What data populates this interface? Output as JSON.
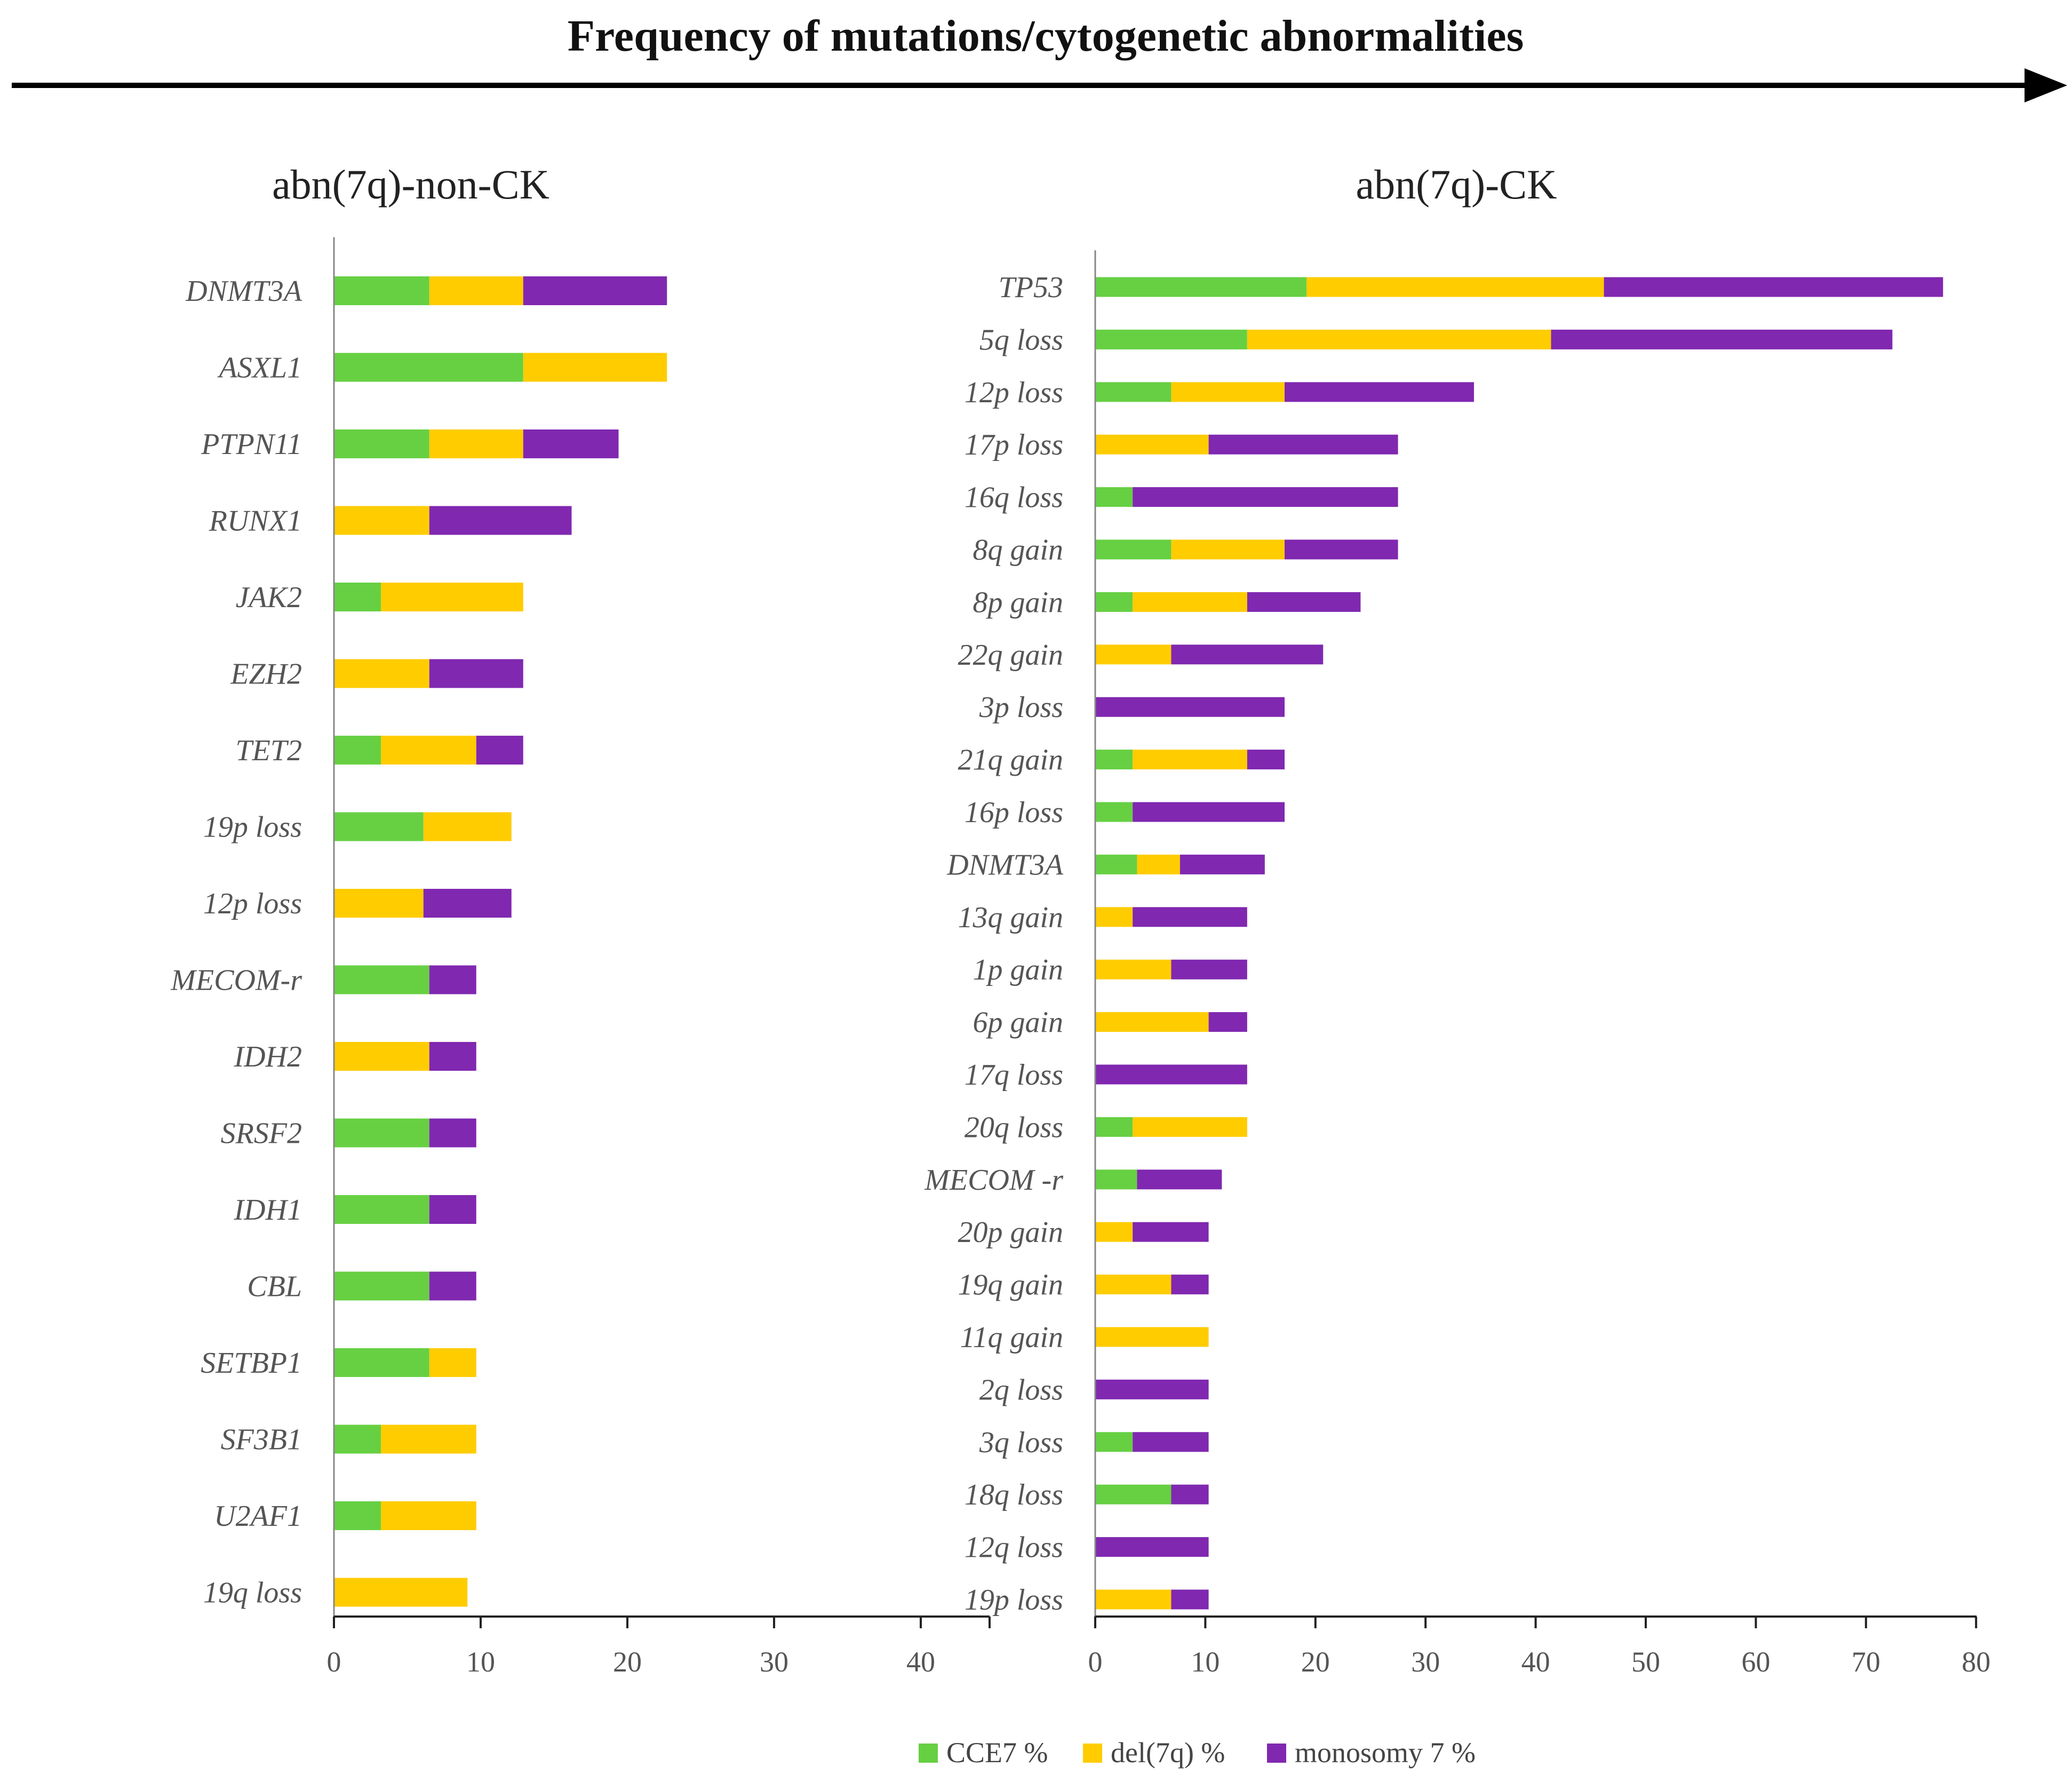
{
  "figure": {
    "title": "Frequency of mutations/cytogenetic abnormalities"
  },
  "colors": {
    "cce7": "#66d042",
    "del7q": "#ffcc00",
    "mono7": "#8028b0"
  },
  "legend": {
    "position": "bottom-center",
    "items": [
      "CCE7 %",
      "del(7q) %",
      "monosomy 7 %"
    ]
  },
  "chart_data": [
    {
      "type": "bar",
      "orientation": "horizontal",
      "stacked": true,
      "title": "abn(7q)-non-CK",
      "xlim": [
        0,
        45
      ],
      "xticks": [
        0,
        10,
        20,
        30,
        40
      ],
      "categories": [
        "DNMT3A",
        "ASXL1",
        "PTPN11",
        "RUNX1",
        "JAK2",
        "EZH2",
        "TET2",
        "19p loss",
        "12p loss",
        "MECOM-r",
        "IDH2",
        "SRSF2",
        "IDH1",
        "CBL",
        "SETBP1",
        "SF3B1",
        "U2AF1",
        "19q loss"
      ],
      "series": [
        {
          "name": "CCE7 %",
          "values": [
            6.5,
            12.9,
            6.5,
            0,
            3.2,
            0,
            3.2,
            6.1,
            0,
            6.5,
            0,
            6.5,
            6.5,
            6.5,
            6.5,
            3.2,
            3.2,
            0
          ]
        },
        {
          "name": "del(7q) %",
          "values": [
            6.4,
            9.8,
            6.4,
            6.5,
            9.7,
            6.5,
            6.5,
            6.0,
            6.1,
            0,
            6.5,
            0,
            0,
            0,
            3.2,
            6.5,
            6.5,
            9.1
          ]
        },
        {
          "name": "monosomy 7 %",
          "values": [
            9.8,
            0,
            6.5,
            9.7,
            0,
            6.4,
            3.2,
            0,
            6.0,
            3.2,
            3.2,
            3.2,
            3.2,
            3.2,
            0,
            0,
            0,
            0
          ]
        }
      ]
    },
    {
      "type": "bar",
      "orientation": "horizontal",
      "stacked": true,
      "title": "abn(7q)-CK",
      "xlim": [
        0,
        80
      ],
      "xticks": [
        0,
        10,
        20,
        30,
        40,
        50,
        60,
        70,
        80
      ],
      "categories": [
        "TP53",
        "5q loss",
        "12p loss",
        "17p loss",
        "16q loss",
        "8q gain",
        "8p gain",
        "22q gain",
        "3p loss",
        "21q gain",
        "16p loss",
        "DNMT3A",
        "13q gain",
        "1p gain",
        "6p gain",
        "17q loss",
        "20q loss",
        "MECOM -r",
        "20p gain",
        "19q gain",
        "11q gain",
        "2q loss",
        "3q loss",
        "18q loss",
        "12q loss",
        "19p loss"
      ],
      "series": [
        {
          "name": "CCE7 %",
          "values": [
            19.2,
            13.8,
            6.9,
            0,
            3.4,
            6.9,
            3.4,
            0,
            0,
            3.4,
            3.4,
            3.8,
            0,
            0,
            0,
            0,
            3.4,
            3.8,
            0,
            0,
            0,
            0,
            3.4,
            6.9,
            0,
            0
          ]
        },
        {
          "name": "del(7q) %",
          "values": [
            27.0,
            27.6,
            10.3,
            10.3,
            0,
            10.3,
            10.4,
            6.9,
            0,
            10.4,
            0,
            3.9,
            3.4,
            6.9,
            10.3,
            0,
            10.4,
            0,
            3.4,
            6.9,
            10.3,
            0,
            0,
            0,
            0,
            6.9
          ]
        },
        {
          "name": "monosomy 7 %",
          "values": [
            30.8,
            31.0,
            17.2,
            17.2,
            24.1,
            10.3,
            10.3,
            13.8,
            17.2,
            3.4,
            13.8,
            7.7,
            10.4,
            6.9,
            3.5,
            13.8,
            0,
            7.7,
            6.9,
            3.4,
            0,
            10.3,
            6.9,
            3.4,
            10.3,
            3.4
          ]
        }
      ]
    }
  ]
}
